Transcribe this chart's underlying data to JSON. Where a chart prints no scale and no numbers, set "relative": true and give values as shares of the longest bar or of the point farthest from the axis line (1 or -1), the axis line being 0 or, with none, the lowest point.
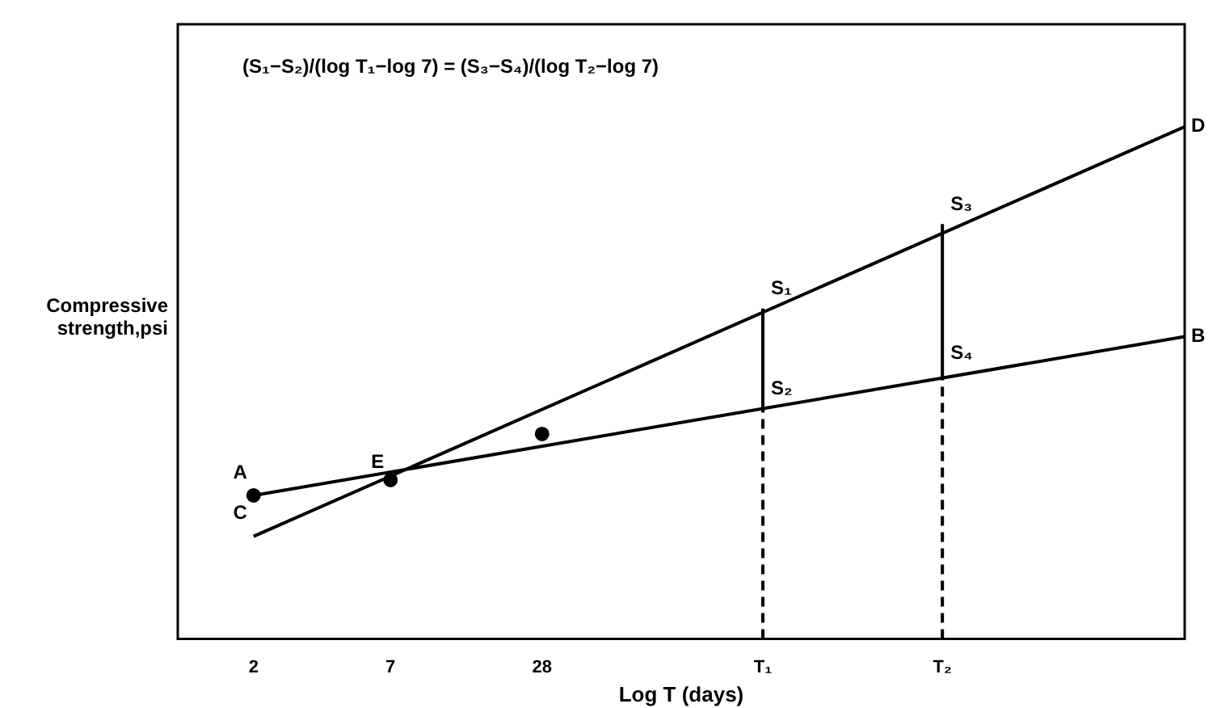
{
  "chart_data": {
    "type": "line",
    "relative": true,
    "xlabel": "Log T (days)",
    "ylabel": "Compressive strength,psi",
    "log": "x",
    "xlim": [
      1,
      10000
    ],
    "xticks": [
      2,
      7,
      28,
      {
        "value": 211,
        "label": "T₁"
      },
      {
        "value": 1090,
        "label": "T₂"
      }
    ],
    "grid": false,
    "legend": false,
    "marker": "none",
    "line_style": "solid",
    "series": [
      {
        "color": "#000000",
        "x": [
          2,
          10000
        ],
        "values": [
          0.2,
          1
        ]
      },
      {
        "color": "#000000",
        "x": [
          2,
          10000
        ],
        "values": [
          0.28,
          0.59
        ]
      },
      {
        "color": "#000000",
        "x": [
          211,
          211
        ],
        "values": [
          0.45,
          0.645
        ]
      },
      {
        "color": "#000000",
        "x": [
          1090,
          1090
        ],
        "values": [
          0.52,
          0.81
        ]
      },
      {
        "color": "#000000",
        "x": [
          211,
          211
        ],
        "values": [
          0,
          0.45
        ],
        "line_style": "dashed"
      },
      {
        "color": "#000000",
        "x": [
          1090,
          1090
        ],
        "values": [
          0,
          0.52
        ],
        "line_style": "dashed"
      },
      {
        "type": "scatter",
        "marker": "circle",
        "color": "#000000",
        "x": [
          2,
          7,
          28
        ],
        "values": [
          0.28,
          0.31,
          0.4
        ]
      }
    ],
    "annotations": [
      "(S₁−S₂)/(log T₁−log 7) = (S₃−S₄)/(log T₂−log 7)",
      {
        "text": "A",
        "x": 2,
        "y": 0.28
      },
      {
        "text": "C",
        "x": 2,
        "y": 0.2
      },
      {
        "text": "D",
        "x": 10000,
        "y": 1
      },
      {
        "text": "B",
        "x": 10000,
        "y": 0.59
      },
      {
        "text": "E",
        "x": 7,
        "y": 0.3
      },
      {
        "text": "S₁",
        "x": 211,
        "y": 0.645
      },
      {
        "text": "S₂",
        "x": 211,
        "y": 0.45
      },
      {
        "text": "S₃",
        "x": 1090,
        "y": 0.81
      },
      {
        "text": "S₄",
        "x": 1090,
        "y": 0.52
      }
    ]
  }
}
